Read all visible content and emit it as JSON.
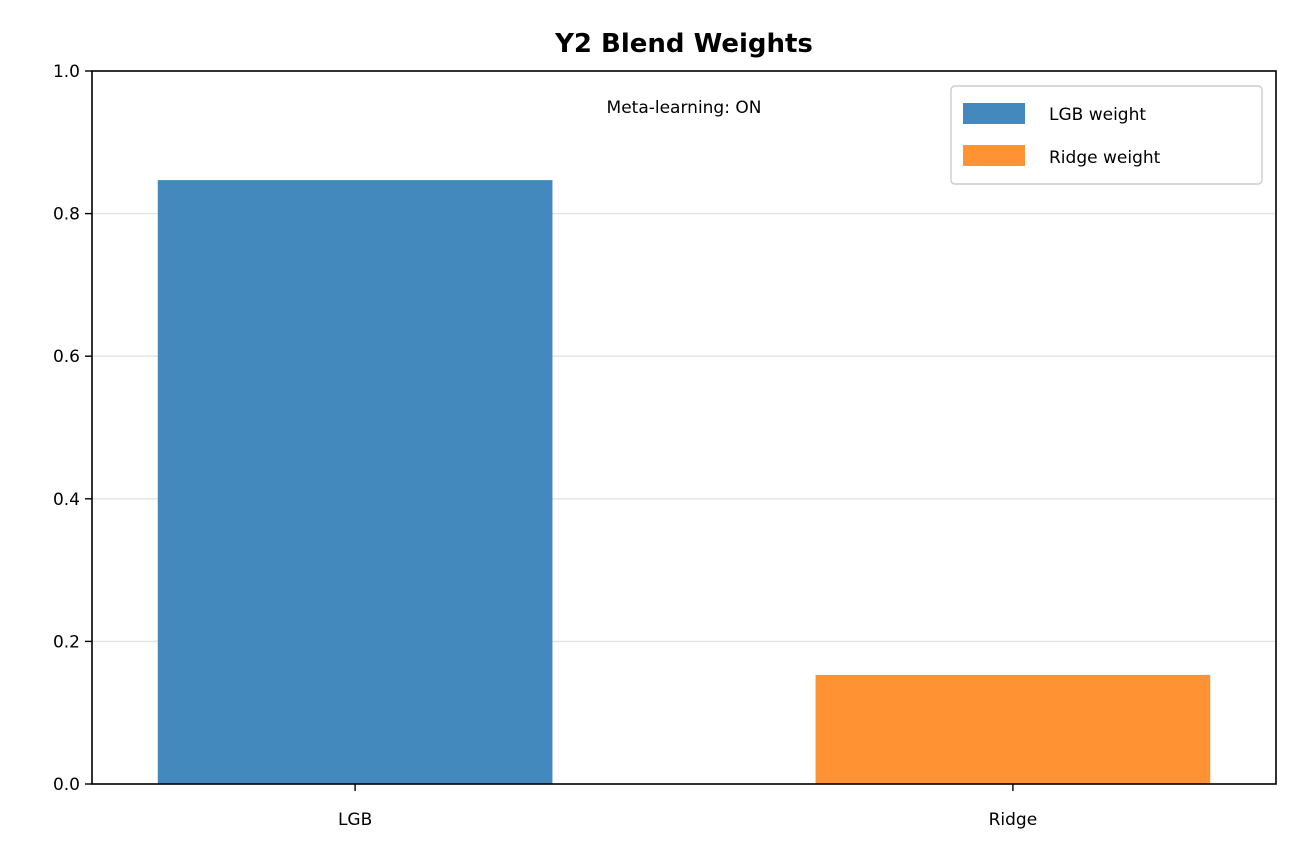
{
  "chart_data": {
    "type": "bar",
    "title": "Y2 Blend Weights",
    "xlabel": "",
    "ylabel": "",
    "categories": [
      "LGB",
      "Ridge"
    ],
    "values": [
      0.847,
      0.153
    ],
    "colors": [
      "#4389bd",
      "#ff9233"
    ],
    "ylim": [
      0,
      1.0
    ],
    "yticks": [
      0.0,
      0.2,
      0.4,
      0.6,
      0.8,
      1.0
    ],
    "ytick_labels": [
      "0.0",
      "0.2",
      "0.4",
      "0.6",
      "0.8",
      "1.0"
    ],
    "grid": "y",
    "annotation": "Meta-learning: ON",
    "legend": {
      "placement": "top-right",
      "entries": [
        "LGB weight",
        "Ridge weight"
      ]
    }
  }
}
